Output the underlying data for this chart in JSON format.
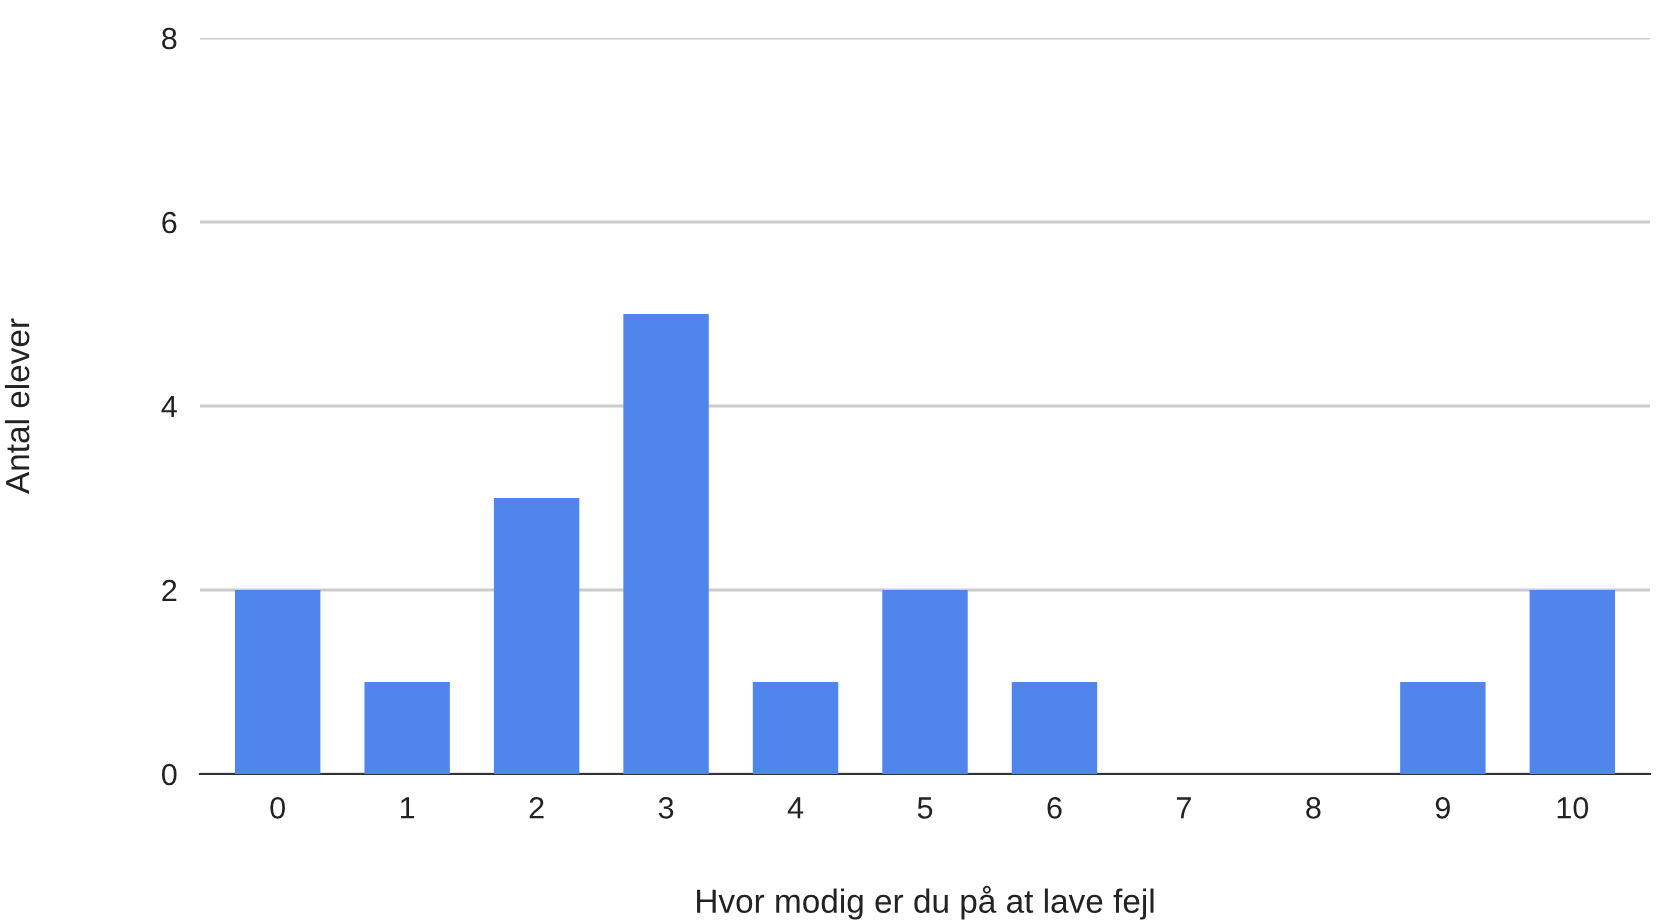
{
  "chart_data": {
    "type": "bar",
    "xlabel": "Hvor modig er du på at lave fejl",
    "ylabel": "Antal elever",
    "categories": [
      "0",
      "1",
      "2",
      "3",
      "4",
      "5",
      "6",
      "7",
      "8",
      "9",
      "10"
    ],
    "values": [
      2,
      1,
      3,
      5,
      1,
      2,
      1,
      0,
      0,
      1,
      2
    ],
    "color": "#5086ec",
    "ylim": [
      0,
      8
    ],
    "yticks": [
      0,
      2,
      4,
      6,
      8
    ],
    "grid": "y",
    "legend": false
  }
}
